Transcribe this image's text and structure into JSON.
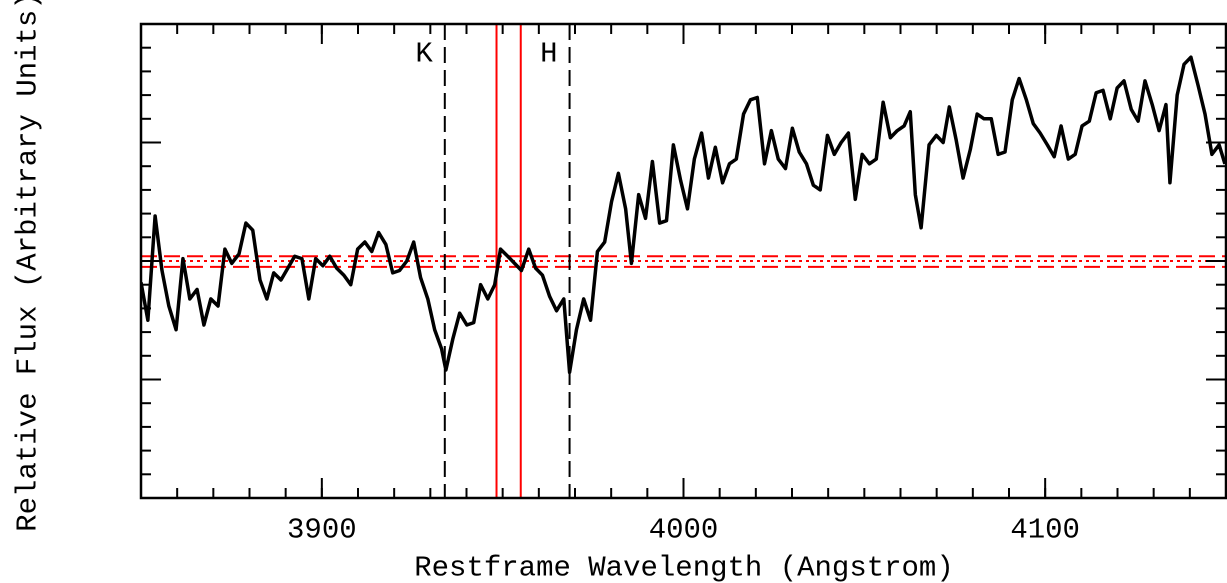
{
  "chart_data": {
    "type": "line",
    "xlabel": "Restframe Wavelength (Angstrom)",
    "ylabel": "Relative Flux (Arbitrary Units)",
    "xlim": [
      3850,
      4150
    ],
    "ylim": [
      0,
      2
    ],
    "xticks": [
      3900,
      4000,
      4100
    ],
    "xminor_step": 10,
    "yticks": [
      0.5,
      1,
      1.5
    ],
    "yminor_step": 0.1,
    "ytick_labels": false,
    "color": "#000000",
    "x": [
      3850.0,
      3851.9,
      3853.9,
      3855.8,
      3857.7,
      3859.7,
      3861.6,
      3863.5,
      3865.5,
      3867.4,
      3869.3,
      3871.3,
      3873.2,
      3875.1,
      3877.1,
      3879.0,
      3880.9,
      3882.9,
      3884.8,
      3886.7,
      3888.7,
      3890.6,
      3892.5,
      3894.5,
      3896.4,
      3898.3,
      3900.3,
      3902.2,
      3904.1,
      3906.1,
      3908.0,
      3909.9,
      3911.9,
      3913.8,
      3915.7,
      3917.7,
      3919.6,
      3921.5,
      3923.5,
      3925.4,
      3927.3,
      3929.3,
      3931.2,
      3933.1,
      3934.3,
      3936.2,
      3938.1,
      3940.1,
      3942.0,
      3943.9,
      3945.9,
      3947.8,
      3949.4,
      3951.4,
      3953.3,
      3955.2,
      3957.2,
      3959.1,
      3961.0,
      3963.0,
      3964.9,
      3966.9,
      3968.5,
      3970.4,
      3972.4,
      3974.3,
      3976.2,
      3978.2,
      3980.1,
      3982.0,
      3984.0,
      3985.6,
      3987.6,
      3989.5,
      3991.4,
      3993.4,
      3995.3,
      3997.2,
      3999.2,
      4001.1,
      4003.0,
      4005.0,
      4006.9,
      4008.8,
      4010.8,
      4012.7,
      4014.6,
      4016.6,
      4018.5,
      4020.4,
      4022.4,
      4024.3,
      4026.2,
      4028.2,
      4030.1,
      4032.0,
      4034.0,
      4035.9,
      4037.8,
      4039.8,
      4041.7,
      4043.6,
      4045.6,
      4047.5,
      4049.4,
      4051.4,
      4053.3,
      4055.2,
      4057.2,
      4059.1,
      4061.0,
      4062.7,
      4064.1,
      4065.7,
      4067.9,
      4069.9,
      4071.8,
      4073.5,
      4075.4,
      4077.3,
      4079.3,
      4081.2,
      4083.1,
      4085.1,
      4087.0,
      4088.9,
      4090.9,
      4092.8,
      4094.8,
      4096.7,
      4098.6,
      4100.6,
      4102.5,
      4104.4,
      4106.4,
      4108.3,
      4110.2,
      4112.2,
      4114.1,
      4116.0,
      4118.0,
      4119.9,
      4121.8,
      4123.8,
      4125.7,
      4127.6,
      4129.6,
      4131.5,
      4133.4,
      4134.5,
      4136.5,
      4138.4,
      4140.3,
      4142.3,
      4144.2,
      4146.1,
      4148.1,
      4149.7
    ],
    "values": [
      0.91,
      0.75,
      1.19,
      0.96,
      0.81,
      0.71,
      1.01,
      0.84,
      0.88,
      0.73,
      0.84,
      0.81,
      1.05,
      0.99,
      1.03,
      1.16,
      1.13,
      0.92,
      0.84,
      0.95,
      0.92,
      0.97,
      1.02,
      1.01,
      0.84,
      1.01,
      0.98,
      1.02,
      0.97,
      0.94,
      0.9,
      1.05,
      1.08,
      1.04,
      1.12,
      1.07,
      0.95,
      0.96,
      1.0,
      1.08,
      0.93,
      0.84,
      0.71,
      0.63,
      0.54,
      0.67,
      0.78,
      0.73,
      0.74,
      0.9,
      0.84,
      0.9,
      1.05,
      1.02,
      0.99,
      0.96,
      1.05,
      0.97,
      0.94,
      0.85,
      0.79,
      0.84,
      0.53,
      0.71,
      0.84,
      0.75,
      1.04,
      1.08,
      1.25,
      1.37,
      1.22,
      0.99,
      1.28,
      1.18,
      1.42,
      1.16,
      1.17,
      1.49,
      1.34,
      1.22,
      1.43,
      1.54,
      1.35,
      1.48,
      1.33,
      1.41,
      1.43,
      1.62,
      1.68,
      1.69,
      1.41,
      1.55,
      1.43,
      1.39,
      1.56,
      1.46,
      1.41,
      1.32,
      1.3,
      1.53,
      1.45,
      1.5,
      1.54,
      1.26,
      1.45,
      1.41,
      1.43,
      1.67,
      1.52,
      1.55,
      1.57,
      1.63,
      1.28,
      1.14,
      1.49,
      1.53,
      1.5,
      1.65,
      1.51,
      1.35,
      1.47,
      1.62,
      1.6,
      1.6,
      1.45,
      1.46,
      1.68,
      1.77,
      1.68,
      1.58,
      1.54,
      1.49,
      1.44,
      1.57,
      1.43,
      1.45,
      1.57,
      1.59,
      1.71,
      1.72,
      1.6,
      1.73,
      1.76,
      1.64,
      1.59,
      1.76,
      1.66,
      1.55,
      1.66,
      1.33,
      1.7,
      1.83,
      1.86,
      1.74,
      1.62,
      1.45,
      1.49,
      1.41
    ],
    "vlines": [
      {
        "value": 3934,
        "label": "K",
        "color": "#000000",
        "style": "dashed"
      },
      {
        "value": 3968.5,
        "label": "H",
        "color": "#000000",
        "style": "dashed"
      },
      {
        "value": 3948.3,
        "color": "#ff0000",
        "style": "solid"
      },
      {
        "value": 3955,
        "color": "#ff0000",
        "style": "solid"
      }
    ],
    "hlines": [
      {
        "value": 1.02,
        "color": "#ff0000",
        "style": "dashed"
      },
      {
        "value": 1.0,
        "color": "#ff0000",
        "style": "dotted"
      },
      {
        "value": 0.975,
        "color": "#ff0000",
        "style": "dashed"
      }
    ]
  }
}
